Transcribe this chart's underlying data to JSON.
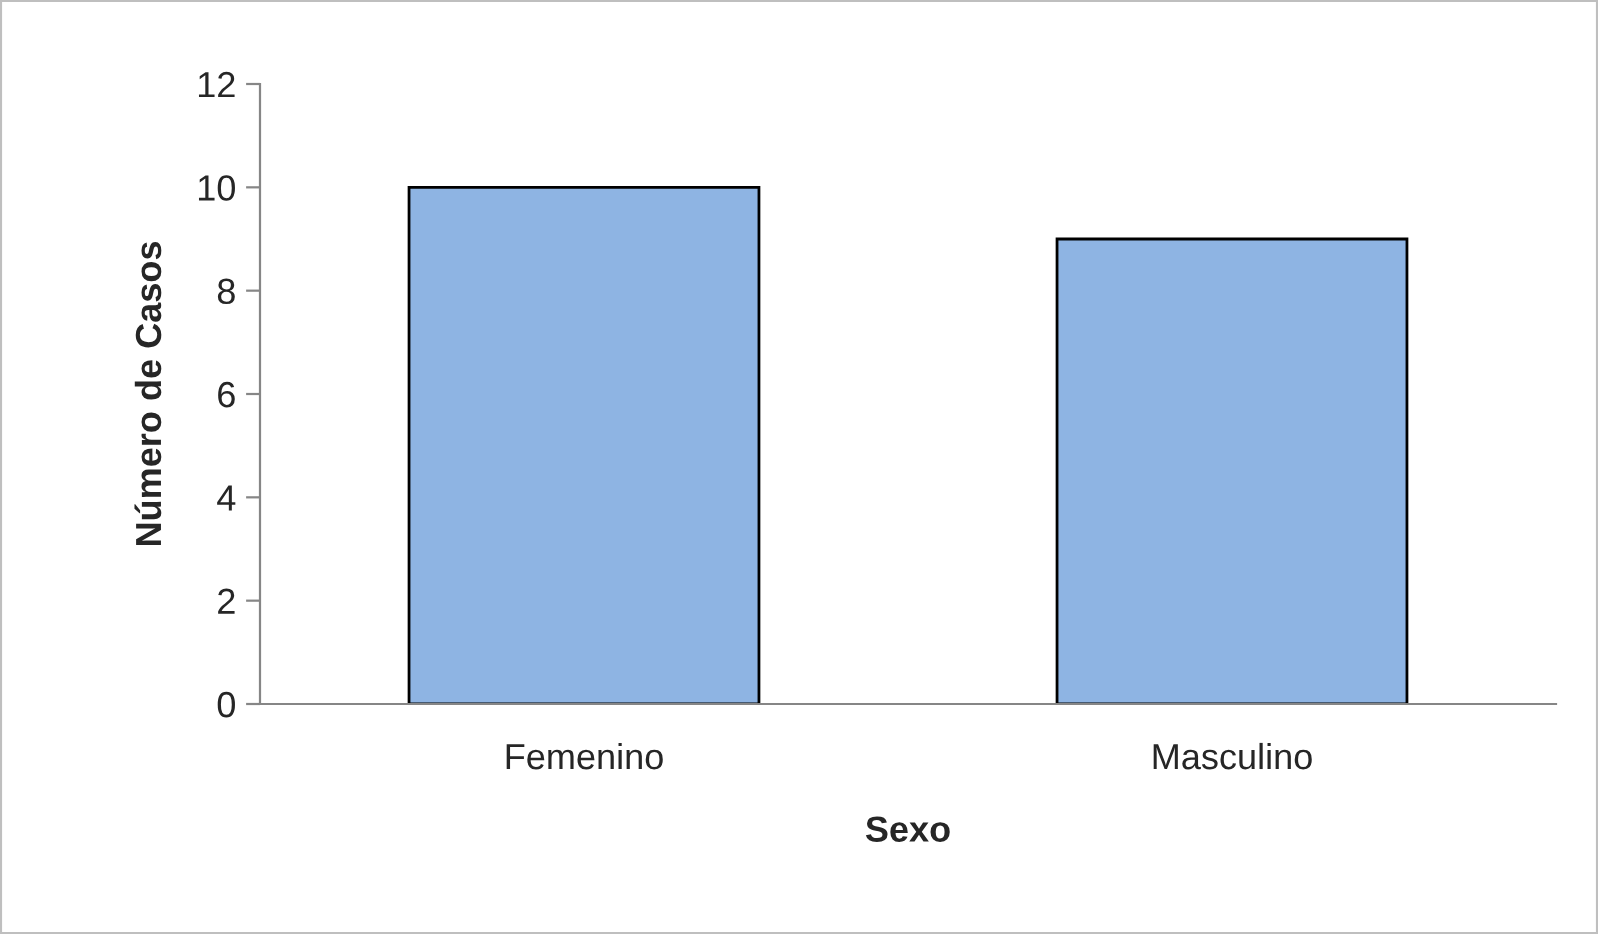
{
  "chart_data": {
    "type": "bar",
    "xlabel": "Sexo",
    "ylabel": "Número de Casos",
    "categories": [
      "Femenino",
      "Masculino"
    ],
    "values": [
      10,
      9
    ],
    "color": "#8eb4e3",
    "ylim": [
      0,
      12
    ],
    "yticks": [
      0,
      2,
      4,
      6,
      8,
      10,
      12
    ],
    "grid": false,
    "legend": false
  }
}
